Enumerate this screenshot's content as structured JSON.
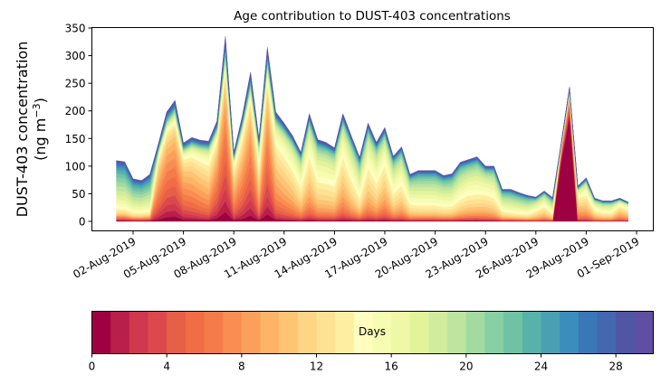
{
  "chart_data": {
    "type": "area",
    "title": "Age contribution to DUST-403 concentrations",
    "ylabel_line1": "DUST-403 concentration",
    "ylabel_line2": "(ng m",
    "ylabel_sup": "−3",
    "ylabel_close": ")",
    "ylim": [
      -15,
      350
    ],
    "yticks": [
      0,
      50,
      100,
      150,
      200,
      250,
      300,
      350
    ],
    "ytick_labels": [
      "0",
      "50",
      "100",
      "150",
      "200",
      "250",
      "300",
      "350"
    ],
    "x_start": "2019-07-30T12:00",
    "x_end": "2019-09-01T12:00",
    "xtick_labels": [
      "02-Aug-2019",
      "05-Aug-2019",
      "08-Aug-2019",
      "11-Aug-2019",
      "14-Aug-2019",
      "17-Aug-2019",
      "20-Aug-2019",
      "23-Aug-2019",
      "26-Aug-2019",
      "29-Aug-2019",
      "01-Sep-2019"
    ],
    "xtick_days": [
      1,
      4,
      7,
      10,
      13,
      16,
      19,
      22,
      25,
      28,
      31
    ],
    "time_step_hours": 12,
    "series_start": "2019-08-01T00:00",
    "total": [
      110,
      108,
      77,
      74,
      85,
      140,
      198,
      219,
      142,
      152,
      147,
      145,
      182,
      335,
      125,
      190,
      270,
      150,
      315,
      198,
      178,
      155,
      125,
      195,
      148,
      143,
      133,
      195,
      155,
      116,
      178,
      143,
      170,
      118,
      135,
      85,
      92,
      92,
      92,
      83,
      86,
      107,
      112,
      117,
      100,
      100,
      58,
      58,
      52,
      47,
      44,
      55,
      43,
      140,
      243,
      64,
      79,
      42,
      37,
      37,
      42,
      35
    ],
    "young_fraction": [
      0.05,
      0.05,
      0.05,
      0.05,
      0.05,
      0.7,
      0.8,
      0.8,
      0.7,
      0.65,
      0.6,
      0.55,
      0.75,
      0.85,
      0.6,
      0.7,
      0.8,
      0.5,
      0.8,
      0.55,
      0.5,
      0.45,
      0.35,
      0.45,
      0.35,
      0.35,
      0.35,
      0.45,
      0.35,
      0.25,
      0.4,
      0.35,
      0.45,
      0.3,
      0.35,
      0.25,
      0.2,
      0.2,
      0.2,
      0.2,
      0.2,
      0.25,
      0.3,
      0.3,
      0.35,
      0.3,
      0.2,
      0.15,
      0.15,
      0.15,
      0.3,
      0.35,
      0.2,
      0.9,
      0.95,
      0.5,
      0.45,
      0.35,
      0.3,
      0.3,
      0.5,
      0.45
    ],
    "colorbar": {
      "label": "Days",
      "range": [
        0,
        30
      ],
      "ticks": [
        0,
        4,
        8,
        12,
        16,
        20,
        24,
        28
      ],
      "tick_labels": [
        "0",
        "4",
        "8",
        "12",
        "16",
        "20",
        "24",
        "28"
      ],
      "colors": [
        "#9e0142",
        "#b8204a",
        "#d0384d",
        "#dc494c",
        "#e65f47",
        "#f06d45",
        "#f57b4a",
        "#f98e52",
        "#fba05b",
        "#fdb466",
        "#fdc474",
        "#fed585",
        "#fee294",
        "#feeea1",
        "#fffebe",
        "#f7fcb3",
        "#eef8a7",
        "#e2f399",
        "#d1ec9c",
        "#bde5a0",
        "#a3da9f",
        "#87cfa4",
        "#6fc3a4",
        "#58b2aa",
        "#4aa0b2",
        "#3b8dbd",
        "#3878b6",
        "#4368af",
        "#5156a4",
        "#5e4fa2"
      ]
    }
  }
}
